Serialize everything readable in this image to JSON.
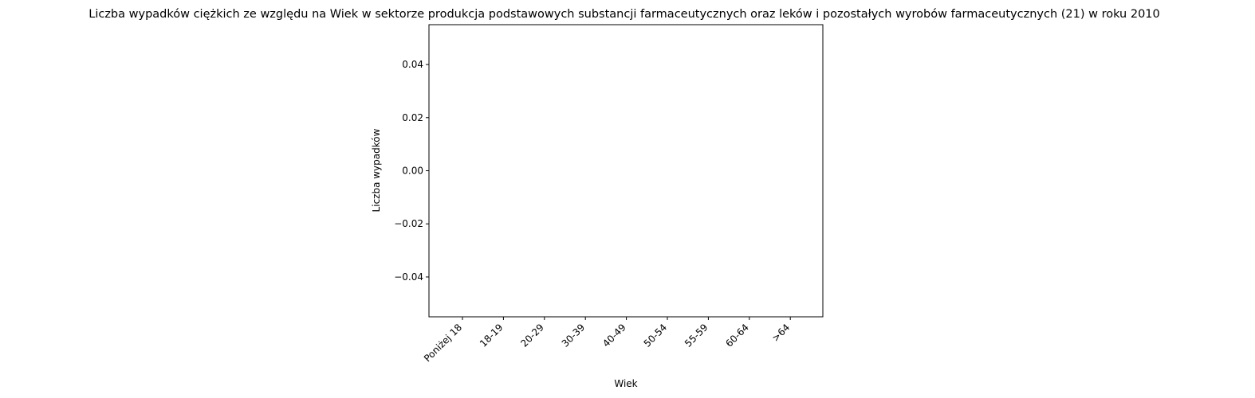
{
  "chart_data": {
    "type": "bar",
    "title": "Liczba wypadków ciężkich ze względu na Wiek w sektorze produkcja podstawowych substancji farmaceutycznych oraz leków i pozostałych wyrobów farmaceutycznych (21)  w roku 2010",
    "xlabel": "Wiek",
    "ylabel": "Liczba wypadków",
    "categories": [
      "Poniżej 18",
      "18-19",
      "20-29",
      "30-39",
      "40-49",
      "50-54",
      "55-59",
      "60-64",
      ">64"
    ],
    "values": [
      0,
      0,
      0,
      0,
      0,
      0,
      0,
      0,
      0
    ],
    "ylim": [
      -0.055,
      0.055
    ],
    "yticks": [
      0.04,
      0.02,
      0.0,
      -0.02,
      -0.04
    ],
    "ytick_labels": [
      "0.04",
      "0.02",
      "0.00",
      "−0.02",
      "−0.04"
    ],
    "grid": false,
    "legend": "none",
    "colors": {
      "axis": "#000000",
      "bar": "#1f77b4"
    }
  }
}
